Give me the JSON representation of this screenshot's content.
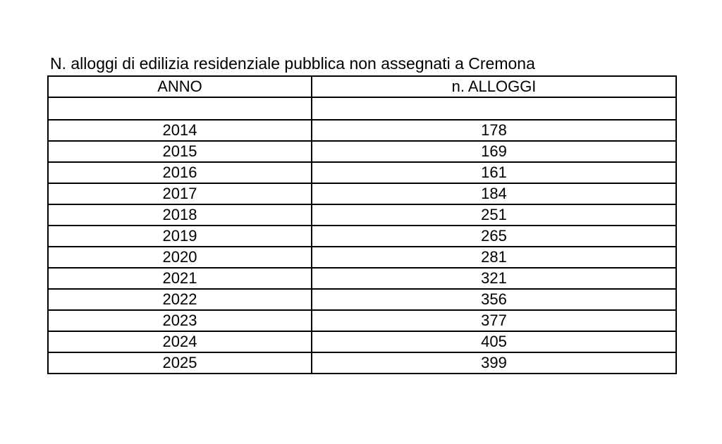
{
  "title": "N. alloggi di edilizia residenziale pubblica non assegnati a Cremona",
  "table": {
    "columns": [
      "ANNO",
      "n. ALLOGGI"
    ],
    "rows": [
      {
        "anno": "2014",
        "alloggi": "178"
      },
      {
        "anno": "2015",
        "alloggi": "169"
      },
      {
        "anno": "2016",
        "alloggi": "161"
      },
      {
        "anno": "2017",
        "alloggi": "184"
      },
      {
        "anno": "2018",
        "alloggi": "251"
      },
      {
        "anno": "2019",
        "alloggi": "265"
      },
      {
        "anno": "2020",
        "alloggi": "281"
      },
      {
        "anno": "2021",
        "alloggi": "321"
      },
      {
        "anno": "2022",
        "alloggi": "356"
      },
      {
        "anno": "2023",
        "alloggi": "377"
      },
      {
        "anno": "2024",
        "alloggi": "405"
      },
      {
        "anno": "2025",
        "alloggi": "399"
      }
    ]
  },
  "chart_data": {
    "type": "table",
    "title": "N. alloggi di edilizia residenziale pubblica non assegnati a Cremona",
    "columns": [
      "ANNO",
      "n. ALLOGGI"
    ],
    "categories": [
      "2014",
      "2015",
      "2016",
      "2017",
      "2018",
      "2019",
      "2020",
      "2021",
      "2022",
      "2023",
      "2024",
      "2025"
    ],
    "values": [
      178,
      169,
      161,
      184,
      251,
      265,
      281,
      321,
      356,
      377,
      405,
      399
    ],
    "text_color": "#000000",
    "border_color": "#000000",
    "background_color": "#ffffff"
  }
}
